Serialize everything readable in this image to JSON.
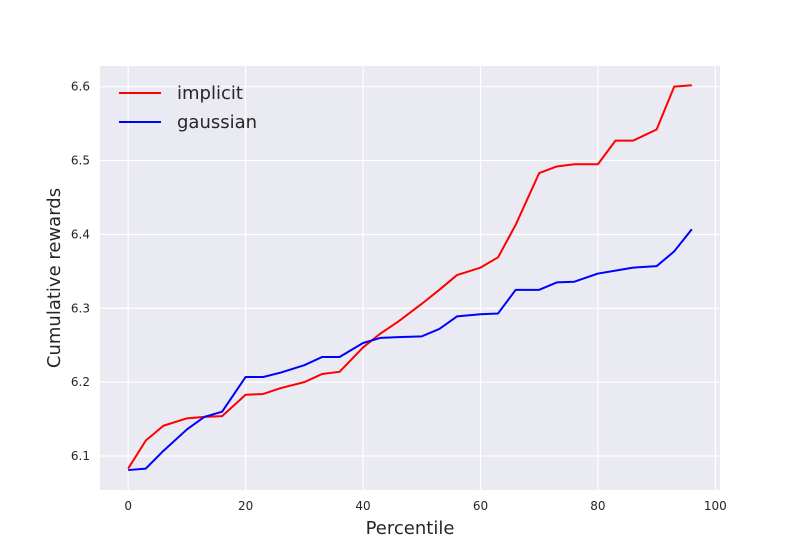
{
  "chart_data": {
    "type": "line",
    "xlabel": "Percentile",
    "ylabel": "Cumulative rewards",
    "xlim": [
      -4.8,
      100.8
    ],
    "ylim": [
      6.054,
      6.628
    ],
    "xticks": [
      0,
      20,
      40,
      60,
      80,
      100
    ],
    "yticks": [
      6.1,
      6.2,
      6.3,
      6.4,
      6.5,
      6.6
    ],
    "ytick_labels": [
      "6.1",
      "6.2",
      "6.3",
      "6.4",
      "6.5",
      "6.6"
    ],
    "grid": true,
    "legend": "upper-left",
    "background_color": "#eaeaf2",
    "series": [
      {
        "name": "implicit",
        "color": "#ff0000",
        "x": [
          0,
          3,
          6,
          10,
          13,
          16,
          20,
          23,
          26,
          30,
          33,
          36,
          40,
          43,
          46,
          50,
          53,
          56,
          60,
          63,
          66,
          70,
          73,
          76,
          80,
          83,
          86,
          90,
          93,
          96
        ],
        "y": [
          6.083,
          6.121,
          6.141,
          6.151,
          6.153,
          6.154,
          6.183,
          6.184,
          6.192,
          6.2,
          6.211,
          6.214,
          6.247,
          6.266,
          6.282,
          6.306,
          6.325,
          6.345,
          6.355,
          6.369,
          6.413,
          6.483,
          6.492,
          6.495,
          6.495,
          6.527,
          6.527,
          6.542,
          6.6,
          6.602
        ]
      },
      {
        "name": "gaussian",
        "color": "#0000ff",
        "x": [
          0,
          3,
          6,
          10,
          13,
          16,
          20,
          23,
          26,
          30,
          33,
          36,
          40,
          43,
          46,
          50,
          53,
          56,
          60,
          63,
          66,
          70,
          73,
          76,
          80,
          83,
          86,
          90,
          93,
          96
        ],
        "y": [
          6.081,
          6.083,
          6.107,
          6.136,
          6.153,
          6.16,
          6.207,
          6.207,
          6.213,
          6.223,
          6.234,
          6.234,
          6.253,
          6.26,
          6.261,
          6.262,
          6.272,
          6.289,
          6.292,
          6.293,
          6.325,
          6.325,
          6.335,
          6.336,
          6.347,
          6.351,
          6.355,
          6.357,
          6.377,
          6.407
        ]
      }
    ]
  }
}
